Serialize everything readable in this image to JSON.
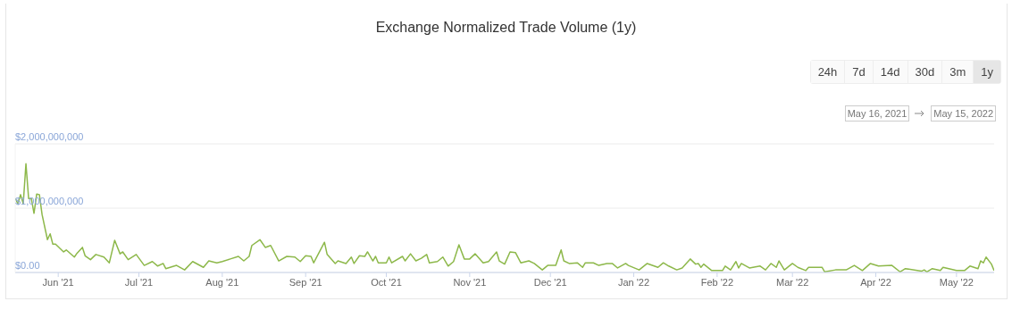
{
  "chart_data": {
    "type": "line",
    "title": "Exchange Normalized Trade Volume (1y)",
    "annotations": [
      "24h",
      "7d",
      "14d",
      "30d",
      "3m",
      "1y",
      "May 16, 2021",
      "May 15, 2022"
    ],
    "x": [
      "2021-05-16",
      "2021-05-17",
      "2021-05-18",
      "2021-05-19",
      "2021-05-20",
      "2021-05-21",
      "2021-05-22",
      "2021-05-23",
      "2021-05-24",
      "2021-05-25",
      "2021-05-26",
      "2021-05-28",
      "2021-05-29",
      "2021-05-30",
      "2021-05-31",
      "2021-06-03",
      "2021-06-04",
      "2021-06-07",
      "2021-06-08",
      "2021-06-10",
      "2021-06-11",
      "2021-06-13",
      "2021-06-15",
      "2021-06-18",
      "2021-06-20",
      "2021-06-22",
      "2021-06-24",
      "2021-06-25",
      "2021-06-27",
      "2021-06-30",
      "2021-07-03",
      "2021-07-06",
      "2021-07-08",
      "2021-07-10",
      "2021-07-11",
      "2021-07-15",
      "2021-07-18",
      "2021-07-21",
      "2021-07-25",
      "2021-07-27",
      "2021-07-30",
      "2021-08-01",
      "2021-08-04",
      "2021-08-07",
      "2021-08-09",
      "2021-08-11",
      "2021-08-12",
      "2021-08-15",
      "2021-08-17",
      "2021-08-19",
      "2021-08-22",
      "2021-08-25",
      "2021-08-28",
      "2021-08-30",
      "2021-09-01",
      "2021-09-03",
      "2021-09-04",
      "2021-09-08",
      "2021-09-09",
      "2021-09-12",
      "2021-09-13",
      "2021-09-16",
      "2021-09-18",
      "2021-09-19",
      "2021-09-21",
      "2021-09-23",
      "2021-09-24",
      "2021-09-26",
      "2021-09-27",
      "2021-09-28",
      "2021-10-01",
      "2021-10-02",
      "2021-10-03",
      "2021-10-07",
      "2021-10-08",
      "2021-10-10",
      "2021-10-12",
      "2021-10-14",
      "2021-10-16",
      "2021-10-17",
      "2021-10-20",
      "2021-10-22",
      "2021-10-24",
      "2021-10-26",
      "2021-10-28",
      "2021-10-30",
      "2021-11-01",
      "2021-11-03",
      "2021-11-06",
      "2021-11-08",
      "2021-11-11",
      "2021-11-12",
      "2021-11-14",
      "2021-11-16",
      "2021-11-18",
      "2021-11-20",
      "2021-11-23",
      "2021-11-25",
      "2021-11-28",
      "2021-11-30",
      "2021-12-03",
      "2021-12-05",
      "2021-12-06",
      "2021-12-08",
      "2021-12-11",
      "2021-12-13",
      "2021-12-14",
      "2021-12-17",
      "2021-12-19",
      "2021-12-22",
      "2021-12-24",
      "2021-12-26",
      "2021-12-29",
      "2021-12-30",
      "2022-01-03",
      "2022-01-06",
      "2022-01-10",
      "2022-01-12",
      "2022-01-14",
      "2022-01-17",
      "2022-01-19",
      "2022-01-22",
      "2022-01-24",
      "2022-01-25",
      "2022-01-26",
      "2022-01-27",
      "2022-01-30",
      "2022-02-03",
      "2022-02-04",
      "2022-02-06",
      "2022-02-08",
      "2022-02-09",
      "2022-02-10",
      "2022-02-13",
      "2022-02-17",
      "2022-02-19",
      "2022-02-21",
      "2022-02-23",
      "2022-02-24",
      "2022-02-26",
      "2022-03-01",
      "2022-03-03",
      "2022-03-06",
      "2022-03-07",
      "2022-03-12",
      "2022-03-13",
      "2022-03-17",
      "2022-03-21",
      "2022-03-24",
      "2022-03-27",
      "2022-03-30",
      "2022-04-02",
      "2022-04-07",
      "2022-04-10",
      "2022-04-12",
      "2022-04-18",
      "2022-04-19",
      "2022-04-20",
      "2022-04-22",
      "2022-04-25",
      "2022-04-26",
      "2022-05-01",
      "2022-05-04",
      "2022-05-06",
      "2022-05-09",
      "2022-05-10",
      "2022-05-11",
      "2022-05-12",
      "2022-05-14",
      "2022-05-15"
    ],
    "series": [
      {
        "color": "#8db84a",
        "values": [
          1150000000,
          1070000000,
          1210000000,
          1070000000,
          1690000000,
          1150000000,
          1150000000,
          920000000,
          1220000000,
          1210000000,
          900000000,
          510000000,
          600000000,
          440000000,
          440000000,
          320000000,
          350000000,
          240000000,
          300000000,
          390000000,
          260000000,
          200000000,
          280000000,
          240000000,
          150000000,
          500000000,
          290000000,
          320000000,
          200000000,
          280000000,
          110000000,
          170000000,
          100000000,
          140000000,
          60000000,
          110000000,
          40000000,
          170000000,
          80000000,
          180000000,
          150000000,
          170000000,
          210000000,
          250000000,
          180000000,
          250000000,
          420000000,
          510000000,
          390000000,
          420000000,
          180000000,
          250000000,
          240000000,
          170000000,
          260000000,
          250000000,
          150000000,
          470000000,
          280000000,
          140000000,
          180000000,
          140000000,
          240000000,
          140000000,
          260000000,
          250000000,
          320000000,
          180000000,
          250000000,
          150000000,
          150000000,
          240000000,
          150000000,
          250000000,
          180000000,
          290000000,
          180000000,
          220000000,
          280000000,
          150000000,
          170000000,
          240000000,
          100000000,
          170000000,
          430000000,
          210000000,
          210000000,
          290000000,
          150000000,
          170000000,
          320000000,
          180000000,
          130000000,
          320000000,
          310000000,
          150000000,
          180000000,
          140000000,
          40000000,
          110000000,
          110000000,
          350000000,
          180000000,
          140000000,
          150000000,
          80000000,
          150000000,
          150000000,
          110000000,
          140000000,
          140000000,
          70000000,
          140000000,
          110000000,
          40000000,
          140000000,
          80000000,
          150000000,
          100000000,
          40000000,
          70000000,
          210000000,
          130000000,
          140000000,
          80000000,
          130000000,
          30000000,
          30000000,
          100000000,
          40000000,
          170000000,
          70000000,
          140000000,
          70000000,
          100000000,
          40000000,
          140000000,
          80000000,
          180000000,
          40000000,
          140000000,
          80000000,
          30000000,
          80000000,
          80000000,
          10000000,
          40000000,
          40000000,
          110000000,
          30000000,
          140000000,
          100000000,
          110000000,
          10000000,
          60000000,
          20000000,
          40000000,
          10000000,
          60000000,
          30000000,
          80000000,
          30000000,
          30000000,
          100000000,
          60000000,
          180000000,
          150000000,
          240000000,
          130000000,
          30000000
        ]
      }
    ],
    "xlim": [
      "2021-05-16",
      "2022-05-15"
    ],
    "xticks": [
      {
        "value": "2021-06-01",
        "label": "Jun '21"
      },
      {
        "value": "2021-07-01",
        "label": "Jul '21"
      },
      {
        "value": "2021-08-01",
        "label": "Aug '21"
      },
      {
        "value": "2021-09-01",
        "label": "Sep '21"
      },
      {
        "value": "2021-10-01",
        "label": "Oct '21"
      },
      {
        "value": "2021-11-01",
        "label": "Nov '21"
      },
      {
        "value": "2021-12-01",
        "label": "Dec '21"
      },
      {
        "value": "2022-01-01",
        "label": "Jan '22"
      },
      {
        "value": "2022-02-01",
        "label": "Feb '22"
      },
      {
        "value": "2022-03-01",
        "label": "Mar '22"
      },
      {
        "value": "2022-04-01",
        "label": "Apr '22"
      },
      {
        "value": "2022-05-01",
        "label": "May '22"
      }
    ],
    "ylim": [
      0,
      2000000000
    ],
    "yticks": [
      {
        "value": 0,
        "label": "$0.00"
      },
      {
        "value": 1000000000,
        "label": "$1,000,000,000"
      },
      {
        "value": 2000000000,
        "label": "$2,000,000,000"
      }
    ],
    "grid": "y",
    "marker": "none",
    "line_style": "solid"
  }
}
